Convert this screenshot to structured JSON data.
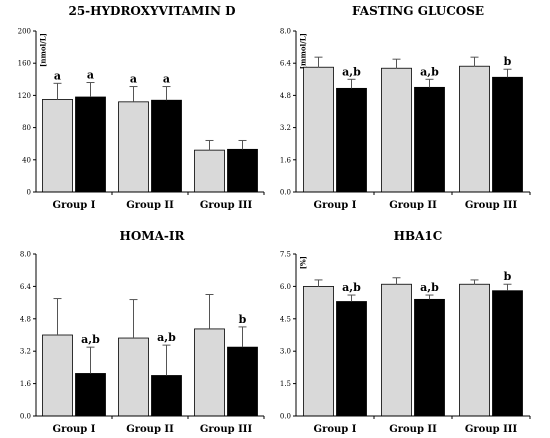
{
  "colors": {
    "series_0": "#d9d9d9",
    "series_1": "#000000",
    "error_bar": "#555555"
  },
  "chart_data": [
    {
      "type": "bar",
      "title": "25-HYDROXYVITAMIN D",
      "ylabel": "[nmol/L]",
      "ylim": [
        0,
        200
      ],
      "yticks": [
        "0",
        "40",
        "80",
        "120",
        "160",
        "200"
      ],
      "categories": [
        "Group I",
        "Group II",
        "Group III"
      ],
      "series": [
        {
          "values": [
            115,
            112,
            52
          ],
          "errors": [
            20,
            19,
            12
          ],
          "labels": [
            "a",
            "a",
            ""
          ]
        },
        {
          "values": [
            118,
            114,
            53
          ],
          "errors": [
            18,
            17,
            11
          ],
          "labels": [
            "a",
            "a",
            ""
          ]
        }
      ]
    },
    {
      "type": "bar",
      "title": "FASTING GLUCOSE",
      "ylabel": "[mmol/L]",
      "ylim": [
        0,
        8
      ],
      "yticks": [
        "0.0",
        "1.6",
        "3.2",
        "4.8",
        "6.4",
        "8.0"
      ],
      "categories": [
        "Group I",
        "Group II",
        "Group III"
      ],
      "series": [
        {
          "values": [
            6.2,
            6.15,
            6.25
          ],
          "errors": [
            0.5,
            0.45,
            0.45
          ],
          "labels": [
            "",
            "",
            ""
          ]
        },
        {
          "values": [
            5.15,
            5.2,
            5.7
          ],
          "errors": [
            0.45,
            0.4,
            0.4
          ],
          "labels": [
            "a,b",
            "a,b",
            "b"
          ]
        }
      ]
    },
    {
      "type": "bar",
      "title": "HOMA-IR",
      "ylabel": "",
      "ylim": [
        0,
        8
      ],
      "yticks": [
        "0.0",
        "1.6",
        "3.2",
        "4.8",
        "6.4",
        "8.0"
      ],
      "categories": [
        "Group I",
        "Group II",
        "Group III"
      ],
      "series": [
        {
          "values": [
            4.0,
            3.85,
            4.3
          ],
          "errors": [
            1.8,
            1.9,
            1.7
          ],
          "labels": [
            "",
            "",
            ""
          ]
        },
        {
          "values": [
            2.1,
            2.0,
            3.4
          ],
          "errors": [
            1.3,
            1.5,
            1.0
          ],
          "labels": [
            "a,b",
            "a,b",
            "b"
          ]
        }
      ]
    },
    {
      "type": "bar",
      "title": "HBA1C",
      "ylabel": "[%]",
      "ylim": [
        0,
        7.5
      ],
      "yticks": [
        "0.0",
        "1.5",
        "3.0",
        "4.5",
        "6.0",
        "7.5"
      ],
      "categories": [
        "Group I",
        "Group II",
        "Group III"
      ],
      "series": [
        {
          "values": [
            6.0,
            6.1,
            6.1
          ],
          "errors": [
            0.3,
            0.3,
            0.2
          ],
          "labels": [
            "",
            "",
            ""
          ]
        },
        {
          "values": [
            5.3,
            5.4,
            5.8
          ],
          "errors": [
            0.3,
            0.2,
            0.3
          ],
          "labels": [
            "a,b",
            "a,b",
            "b"
          ]
        }
      ]
    }
  ]
}
